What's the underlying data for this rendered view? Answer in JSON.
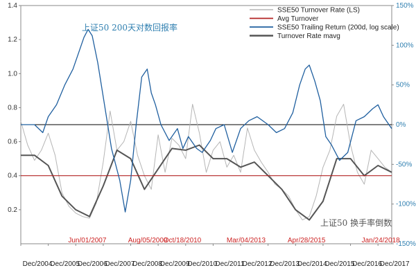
{
  "chart_data": {
    "type": "line",
    "title": "",
    "xlabel": "",
    "ylabel_left": "",
    "ylabel_right": "",
    "ylim_left": [
      0,
      1.4
    ],
    "ylim_right": [
      -150,
      150
    ],
    "right_axis_scale": "log",
    "grid": false,
    "legend_position": "top-center",
    "x_categories": [
      "Dec/2004",
      "Dec/2005",
      "Dec/2006",
      "Dec/2007",
      "Dec/2008",
      "Dec/2009",
      "Dec/2010",
      "Dec/2011",
      "Dec/2012",
      "Dec/2013",
      "Dec/2014",
      "Dec/2015",
      "Dec/2016",
      "Dec/2017"
    ],
    "y_left_ticks": [
      "0.2",
      "0.4",
      "0.6",
      "0.8",
      "1.0",
      "1.2",
      "1.4"
    ],
    "y_right_ticks": [
      "150%",
      "100%",
      "50%",
      "0%",
      "-50%",
      "-100%",
      "-150%"
    ],
    "overlay_texts": {
      "chinese_title_blue": "上证50 200天对数回报率",
      "chinese_title_gray": "上证50 换手率倒数"
    },
    "annotations": [
      {
        "label": "Jun/01/2007",
        "x": 2.42
      },
      {
        "label": "Aug/05/2009",
        "x": 4.62
      },
      {
        "label": "Oct/18/2010",
        "x": 5.88
      },
      {
        "label": "Mar/04/2013",
        "x": 8.2
      },
      {
        "label": "Apr/28/2015",
        "x": 10.4
      },
      {
        "label": "Jan/24/2018",
        "x": 13.1
      }
    ],
    "colors": {
      "turnover": "#b5b5b5",
      "avg_turnover": "#b22222",
      "trailing_return": "#1f5f9f",
      "mavg": "#555555",
      "zero_line": "#000000",
      "annotation": "#cc2222",
      "right_axis": "#2f7fb0"
    },
    "series": [
      {
        "name": "SSE50 Turnover Rate (LS)",
        "axis": "left",
        "x": [
          0.0,
          0.25,
          0.5,
          0.75,
          1.0,
          1.25,
          1.5,
          1.75,
          2.0,
          2.25,
          2.5,
          2.75,
          3.0,
          3.25,
          3.5,
          3.75,
          4.0,
          4.25,
          4.5,
          4.75,
          5.0,
          5.25,
          5.5,
          5.75,
          6.0,
          6.25,
          6.5,
          6.75,
          7.0,
          7.25,
          7.5,
          7.75,
          8.0,
          8.25,
          8.5,
          8.75,
          9.0,
          9.25,
          9.5,
          9.75,
          10.0,
          10.25,
          10.5,
          10.75,
          11.0,
          11.25,
          11.5,
          11.75,
          12.0,
          12.25,
          12.5,
          12.75,
          13.0,
          13.25,
          13.5
        ],
        "values": [
          0.72,
          0.58,
          0.49,
          0.55,
          0.65,
          0.52,
          0.3,
          0.22,
          0.18,
          0.16,
          0.15,
          0.24,
          0.48,
          0.78,
          0.55,
          0.6,
          0.72,
          0.52,
          0.4,
          0.32,
          0.64,
          0.42,
          0.62,
          0.58,
          0.5,
          0.82,
          0.65,
          0.42,
          0.55,
          0.6,
          0.45,
          0.52,
          0.42,
          0.68,
          0.55,
          0.48,
          0.42,
          0.35,
          0.32,
          0.28,
          0.2,
          0.14,
          0.16,
          0.28,
          0.45,
          0.55,
          0.75,
          0.82,
          0.58,
          0.42,
          0.35,
          0.55,
          0.5,
          0.45,
          0.42
        ]
      },
      {
        "name": "Avg Turnover",
        "axis": "left",
        "x": [
          0.0,
          13.5
        ],
        "values": [
          0.4,
          0.4
        ]
      },
      {
        "name": "SSE50 Trailing Return (200d, log scale)",
        "axis": "right",
        "x": [
          0.0,
          0.5,
          0.8,
          1.0,
          1.3,
          1.6,
          1.9,
          2.1,
          2.3,
          2.45,
          2.6,
          2.8,
          3.0,
          3.3,
          3.6,
          3.8,
          4.0,
          4.2,
          4.4,
          4.6,
          4.75,
          4.9,
          5.1,
          5.4,
          5.7,
          5.9,
          6.1,
          6.4,
          6.6,
          6.9,
          7.1,
          7.4,
          7.7,
          8.0,
          8.3,
          8.6,
          9.0,
          9.3,
          9.6,
          9.9,
          10.15,
          10.35,
          10.5,
          10.7,
          10.9,
          11.1,
          11.3,
          11.6,
          11.9,
          12.2,
          12.5,
          12.8,
          13.0,
          13.2,
          13.5
        ],
        "values": [
          0,
          0,
          -10,
          10,
          25,
          50,
          70,
          90,
          110,
          120,
          112,
          78,
          35,
          -30,
          -70,
          -110,
          -70,
          0,
          60,
          70,
          40,
          25,
          0,
          -20,
          -5,
          -30,
          -15,
          -30,
          -35,
          -20,
          -5,
          0,
          -35,
          -5,
          5,
          10,
          0,
          -10,
          -5,
          15,
          50,
          70,
          75,
          55,
          30,
          -15,
          -25,
          -45,
          -35,
          5,
          10,
          20,
          25,
          10,
          -5
        ]
      },
      {
        "name": "Turnover Rate mavg",
        "axis": "left",
        "x": [
          0.0,
          0.5,
          1.0,
          1.5,
          2.0,
          2.5,
          3.0,
          3.5,
          4.0,
          4.5,
          5.0,
          5.5,
          6.0,
          6.5,
          7.0,
          7.5,
          8.0,
          8.5,
          9.0,
          9.5,
          10.0,
          10.5,
          11.0,
          11.5,
          12.0,
          12.5,
          13.0,
          13.5
        ],
        "values": [
          0.52,
          0.52,
          0.46,
          0.28,
          0.2,
          0.16,
          0.34,
          0.55,
          0.5,
          0.32,
          0.44,
          0.56,
          0.55,
          0.58,
          0.5,
          0.5,
          0.45,
          0.48,
          0.4,
          0.32,
          0.2,
          0.14,
          0.25,
          0.5,
          0.5,
          0.4,
          0.46,
          0.42
        ]
      }
    ]
  }
}
